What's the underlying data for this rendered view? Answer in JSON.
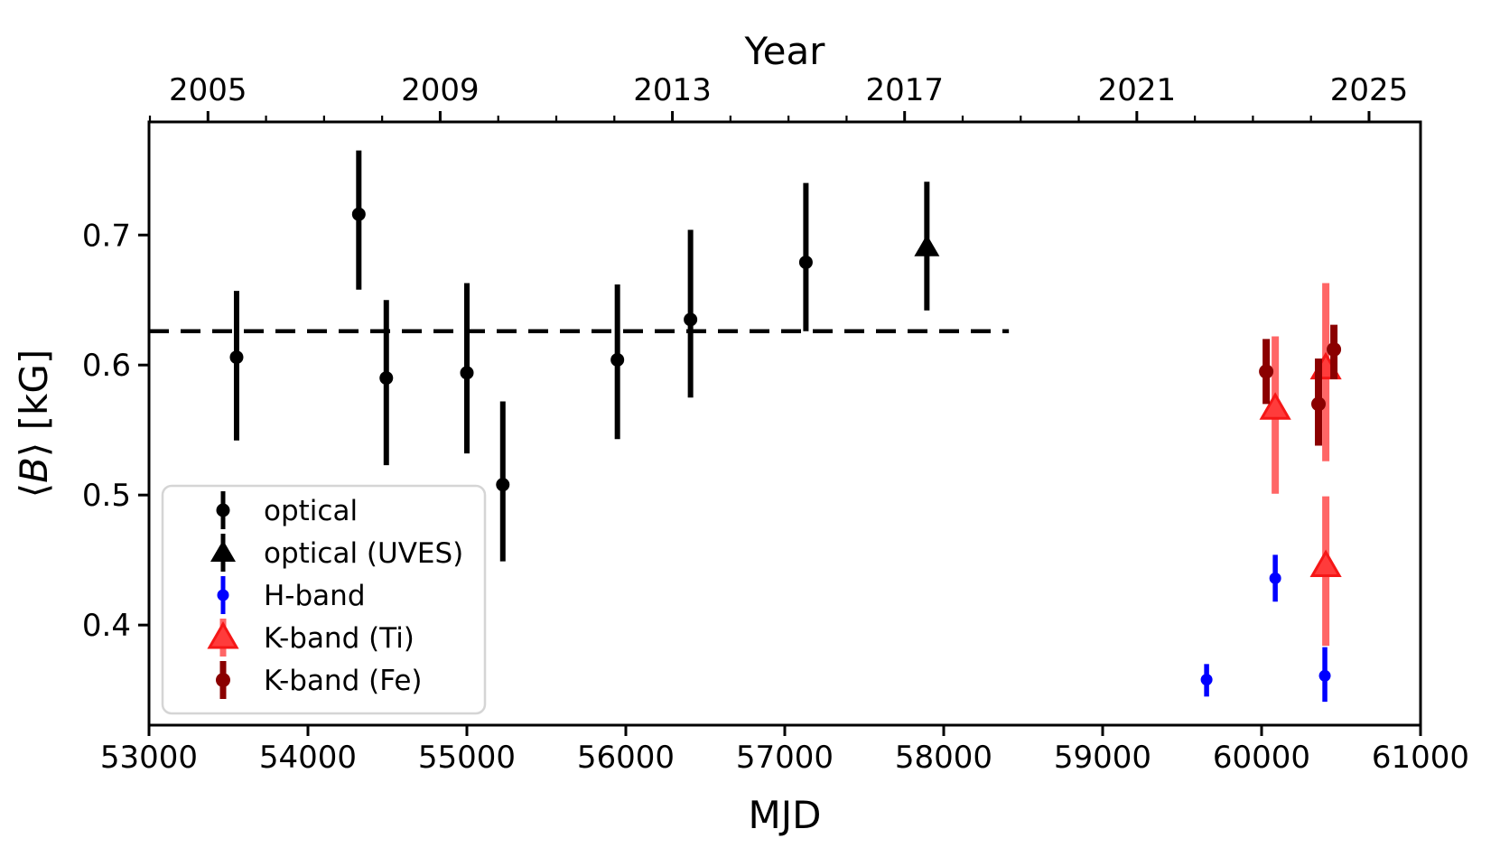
{
  "figure": {
    "top_axis_title": "Year",
    "xlabel": "MJD",
    "ylabel": {
      "prefix": "⟨",
      "italic": "B",
      "suffix": "⟩ [kG]"
    }
  },
  "chart_data": {
    "type": "scatter",
    "title": "",
    "xlabel": "MJD",
    "top_xlabel": "Year",
    "ylabel": "⟨B⟩ [kG]",
    "xlim": [
      53000,
      61000
    ],
    "ylim": [
      0.323,
      0.787
    ],
    "x_ticks": [
      53000,
      54000,
      55000,
      56000,
      57000,
      58000,
      59000,
      60000,
      61000
    ],
    "y_ticks": [
      0.4,
      0.5,
      0.6,
      0.7
    ],
    "top_year_major_ticks": [
      2005,
      2009,
      2013,
      2017,
      2021,
      2025
    ],
    "top_year_minor_ticks": [
      2004,
      2006,
      2007,
      2008,
      2010,
      2011,
      2012,
      2014,
      2015,
      2016,
      2018,
      2019,
      2020,
      2022,
      2023,
      2024
    ],
    "year_to_mjd": {
      "epoch_year": 2005,
      "epoch_mjd": 53371,
      "days_per_year": 365.25
    },
    "grid": false,
    "legend_position": "lower left",
    "mean_line": {
      "y": 0.626,
      "x_start": 53000,
      "x_end": 58410,
      "style": "dashed",
      "color": "#000000"
    },
    "series": [
      {
        "name": "optical",
        "marker": "circle",
        "color": "#000000",
        "bar_color": "#000000",
        "points": [
          {
            "mjd": 53551,
            "b": 0.606,
            "lo": 0.542,
            "hi": 0.657
          },
          {
            "mjd": 54320,
            "b": 0.716,
            "lo": 0.658,
            "hi": 0.765
          },
          {
            "mjd": 54493,
            "b": 0.59,
            "lo": 0.523,
            "hi": 0.65
          },
          {
            "mjd": 55000,
            "b": 0.594,
            "lo": 0.532,
            "hi": 0.663
          },
          {
            "mjd": 55226,
            "b": 0.508,
            "lo": 0.449,
            "hi": 0.572
          },
          {
            "mjd": 55947,
            "b": 0.604,
            "lo": 0.543,
            "hi": 0.662
          },
          {
            "mjd": 56407,
            "b": 0.635,
            "lo": 0.575,
            "hi": 0.704
          },
          {
            "mjd": 57133,
            "b": 0.679,
            "lo": 0.626,
            "hi": 0.74
          }
        ]
      },
      {
        "name": "optical (UVES)",
        "marker": "triangle",
        "color": "#000000",
        "bar_color": "#000000",
        "points": [
          {
            "mjd": 57894,
            "b": 0.692,
            "lo": 0.642,
            "hi": 0.741
          }
        ]
      },
      {
        "name": "H-band",
        "marker": "circle",
        "color": "#0000ff",
        "bar_color": "#0000ff",
        "points": [
          {
            "mjd": 59654,
            "b": 0.358,
            "lo": 0.345,
            "hi": 0.37
          },
          {
            "mjd": 60086,
            "b": 0.436,
            "lo": 0.418,
            "hi": 0.454
          },
          {
            "mjd": 60398,
            "b": 0.361,
            "lo": 0.341,
            "hi": 0.383
          }
        ]
      },
      {
        "name": "K-band (Ti)",
        "marker": "triangle",
        "color": "#ff3b3b",
        "edge_color": "#f51717",
        "bar_color": "#ff6666",
        "points": [
          {
            "mjd": 60086,
            "b": 0.568,
            "lo": 0.501,
            "hi": 0.622
          },
          {
            "mjd": 60404,
            "b": 0.599,
            "lo": 0.526,
            "hi": 0.663
          },
          {
            "mjd": 60404,
            "b": 0.447,
            "lo": 0.384,
            "hi": 0.499
          }
        ]
      },
      {
        "name": "K-band (Fe)",
        "marker": "circle",
        "color": "#8b0000",
        "bar_color": "#8b0000",
        "points": [
          {
            "mjd": 60029,
            "b": 0.595,
            "lo": 0.57,
            "hi": 0.62
          },
          {
            "mjd": 60358,
            "b": 0.57,
            "lo": 0.538,
            "hi": 0.605
          },
          {
            "mjd": 60455,
            "b": 0.612,
            "lo": 0.589,
            "hi": 0.631
          }
        ]
      }
    ],
    "legend": {
      "entries": [
        "optical",
        "optical (UVES)",
        "H-band",
        "K-band (Ti)",
        "K-band (Fe)"
      ]
    }
  }
}
